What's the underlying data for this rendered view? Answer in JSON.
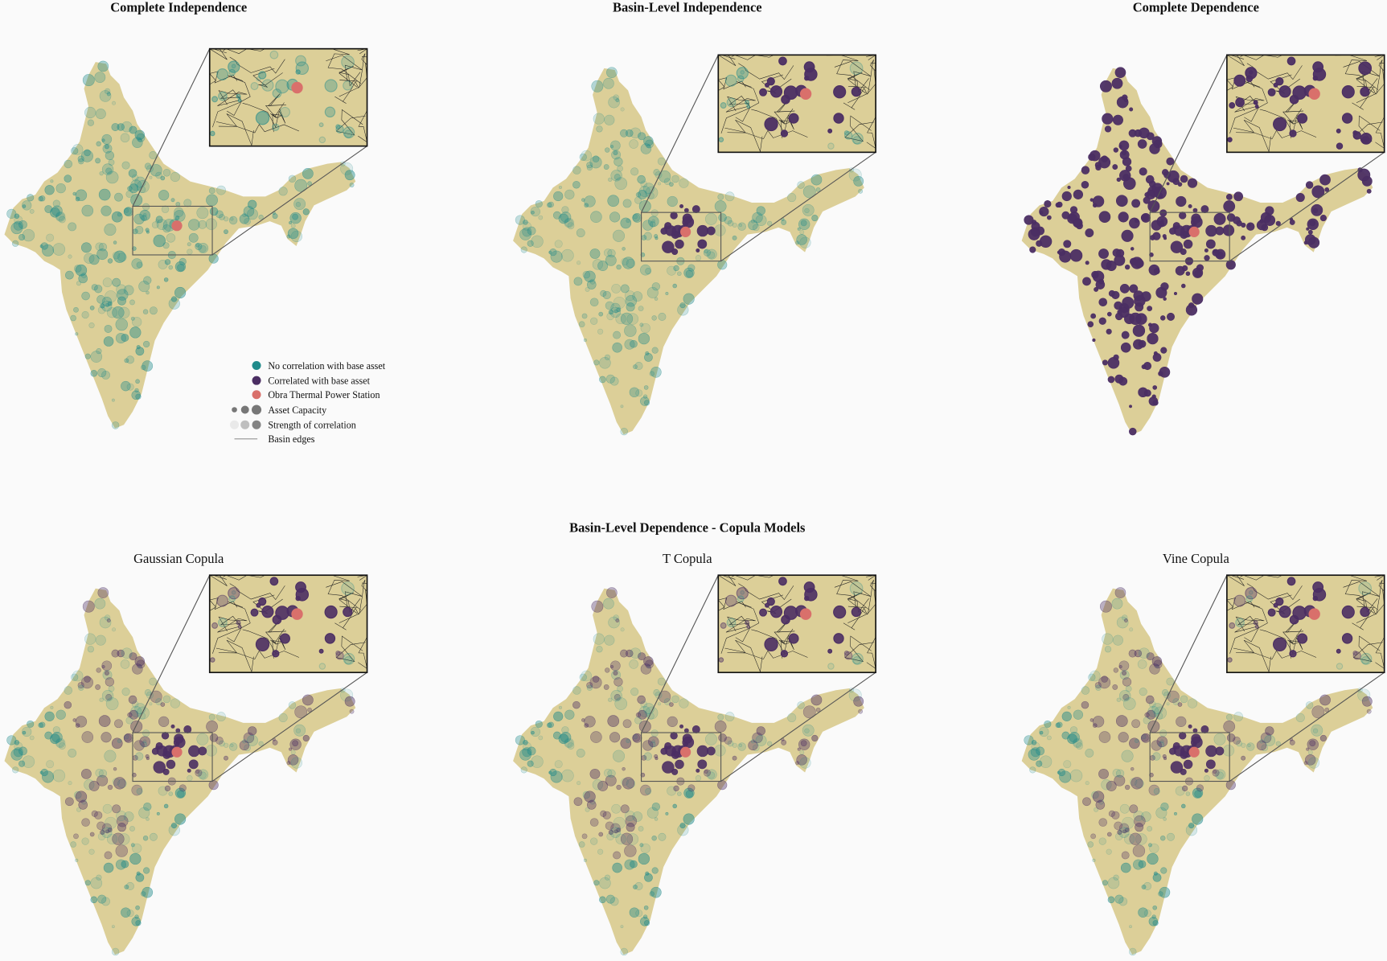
{
  "figure": {
    "top_titles": [
      "Complete Independence",
      "Basin-Level Independence",
      "Complete Dependence"
    ],
    "bottom_section_title": "Basin-Level Dependence - Copula Models",
    "bottom_titles": [
      "Gaussian Copula",
      "T Copula",
      "Vine Copula"
    ]
  },
  "legend": {
    "items": [
      {
        "label": "No correlation with base asset",
        "symbol": "teal-dot"
      },
      {
        "label": "Correlated with base asset",
        "symbol": "purple-dot"
      },
      {
        "label": "Obra Thermal Power Station",
        "symbol": "red-dot"
      },
      {
        "label": "Asset Capacity",
        "symbol": "size-scale-dots"
      },
      {
        "label": "Strength of correlation",
        "symbol": "opacity-scale-dots"
      },
      {
        "label": "Basin edges",
        "symbol": "line"
      }
    ]
  },
  "colors": {
    "land": "#dccf98",
    "uncorrelated": "#1f8a8a",
    "correlated": "#4b2e63",
    "base_asset": "#d9706b",
    "basin_edge": "#222222",
    "background": "#fafafa"
  },
  "panels": [
    {
      "mode": "complete-independence"
    },
    {
      "mode": "basin-independence"
    },
    {
      "mode": "complete-dependence"
    },
    {
      "mode": "gaussian-copula"
    },
    {
      "mode": "t-copula"
    },
    {
      "mode": "vine-copula"
    }
  ]
}
